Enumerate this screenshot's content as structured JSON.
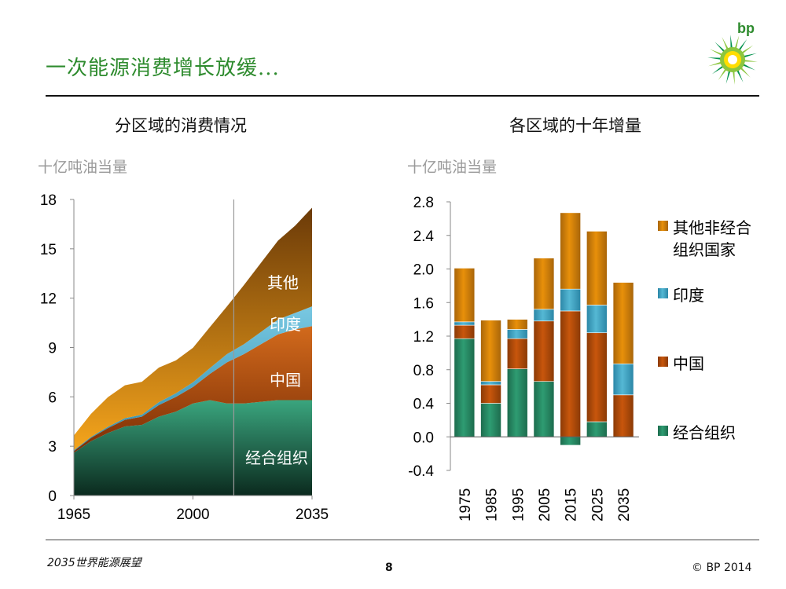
{
  "header": {
    "title": "一次能源消费增长放缓...",
    "logo_text": "bp"
  },
  "footer": {
    "left": "2035世界能源展望",
    "page": "8",
    "right": "© BP 2014"
  },
  "colors": {
    "title_green": "#2e8b2e",
    "oecd": "#2e9c72",
    "china": "#c8560c",
    "india": "#55b8d4",
    "other": "#e8900a"
  },
  "chart_data": [
    {
      "type": "area",
      "title": "分区域的消费情况",
      "ylabel": "十亿吨油当量",
      "x": [
        1965,
        1970,
        1975,
        1980,
        1985,
        1990,
        1995,
        2000,
        2005,
        2010,
        2015,
        2020,
        2025,
        2030,
        2035
      ],
      "xticks": [
        "1965",
        "2000",
        "2035"
      ],
      "ylim": [
        0,
        18
      ],
      "yticks": [
        "0",
        "3",
        "6",
        "9",
        "12",
        "15",
        "18"
      ],
      "projection_start": 2012,
      "series": [
        {
          "name": "经合组织",
          "label": "经合组织",
          "values": [
            2.6,
            3.3,
            3.8,
            4.2,
            4.3,
            4.8,
            5.1,
            5.6,
            5.8,
            5.6,
            5.6,
            5.7,
            5.8,
            5.8,
            5.8
          ]
        },
        {
          "name": "中国",
          "label": "中国",
          "values": [
            0.1,
            0.2,
            0.3,
            0.4,
            0.5,
            0.7,
            0.9,
            1.0,
            1.6,
            2.5,
            3.0,
            3.5,
            4.0,
            4.3,
            4.5
          ]
        },
        {
          "name": "印度",
          "label": "印度",
          "values": [
            0.05,
            0.06,
            0.08,
            0.1,
            0.12,
            0.18,
            0.22,
            0.28,
            0.35,
            0.5,
            0.6,
            0.75,
            0.9,
            1.0,
            1.2
          ]
        },
        {
          "name": "其他非经合组织国家",
          "label": "其他",
          "values": [
            0.9,
            1.4,
            1.8,
            2.0,
            2.0,
            2.1,
            2.0,
            2.1,
            2.5,
            2.9,
            3.6,
            4.2,
            4.8,
            5.3,
            6.0
          ]
        }
      ]
    },
    {
      "type": "bar",
      "title": "各区域的十年增量",
      "ylabel": "十亿吨油当量",
      "categories": [
        "1975",
        "1985",
        "1995",
        "2005",
        "2015",
        "2025",
        "2035"
      ],
      "ylim": [
        -0.4,
        2.8
      ],
      "yticks": [
        "-0.4",
        "0.0",
        "0.4",
        "0.8",
        "1.2",
        "1.6",
        "2.0",
        "2.4",
        "2.8"
      ],
      "series": [
        {
          "name": "经合组织",
          "values": [
            1.17,
            0.4,
            0.81,
            0.66,
            -0.1,
            0.18,
            0.0
          ]
        },
        {
          "name": "中国",
          "values": [
            0.16,
            0.22,
            0.36,
            0.72,
            1.5,
            1.06,
            0.5
          ]
        },
        {
          "name": "印度",
          "values": [
            0.04,
            0.04,
            0.11,
            0.14,
            0.26,
            0.33,
            0.37
          ]
        },
        {
          "name": "其他非经合组织国家",
          "values": [
            0.64,
            0.73,
            0.12,
            0.61,
            0.91,
            0.88,
            0.97
          ]
        }
      ],
      "legend": [
        {
          "name": "其他非经合组织国家",
          "line1": "其他非经合",
          "line2": "组织国家"
        },
        {
          "name": "印度",
          "line1": "印度",
          "line2": ""
        },
        {
          "name": "中国",
          "line1": "中国",
          "line2": ""
        },
        {
          "name": "经合组织",
          "line1": "经合组织",
          "line2": ""
        }
      ],
      "legend_position": "right"
    }
  ]
}
